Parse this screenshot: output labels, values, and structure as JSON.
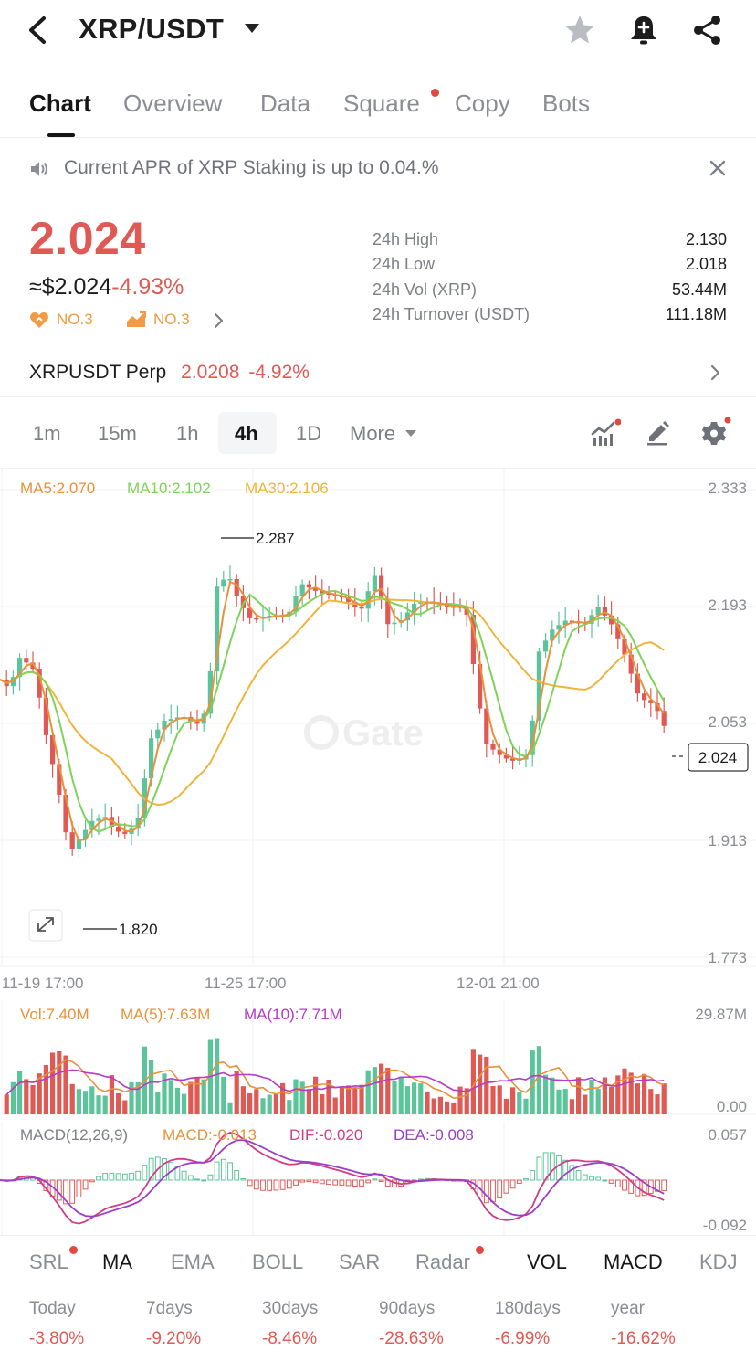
{
  "header": {
    "title": "XRP/USDT"
  },
  "tabs": [
    "Chart",
    "Overview",
    "Data",
    "Square",
    "Copy",
    "Bots"
  ],
  "notice": {
    "text": "Current APR of XRP Staking is up to 0.04.%"
  },
  "price": {
    "last": "2.024",
    "usd": "≈$2.024",
    "change": "-4.93%",
    "rank1": "NO.3",
    "rank2": "NO.3"
  },
  "stats": [
    {
      "label": "24h High",
      "value": "2.130"
    },
    {
      "label": "24h Low",
      "value": "2.018"
    },
    {
      "label": "24h Vol (XRP)",
      "value": "53.44M"
    },
    {
      "label": "24h Turnover (USDT)",
      "value": "111.18M"
    }
  ],
  "perp": {
    "name": "XRPUSDT Perp",
    "price": "2.0208",
    "change": "-4.92%"
  },
  "timeframes": [
    "1m",
    "15m",
    "1h",
    "4h",
    "1D",
    "More"
  ],
  "colors": {
    "up": "#5bc49a",
    "down": "#e05a55",
    "ma5": "#e8913a",
    "ma10": "#7fd35a",
    "ma30": "#f0b43c",
    "vol_ma10": "#b43cc8",
    "dif": "#cf3d86",
    "dea": "#9c3ec6"
  },
  "chart": {
    "ma_legend": {
      "ma5": "MA5:2.070",
      "ma10": "MA10:2.102",
      "ma30": "MA30:2.106"
    },
    "y_ticks": [
      "2.333",
      "2.193",
      "2.053",
      "1.913",
      "1.773"
    ],
    "x_ticks": [
      "11-19 17:00",
      "11-25 17:00",
      "12-01 21:00"
    ],
    "high_label": "2.287",
    "low_label": "1.820",
    "current": "2.024",
    "watermark": "Gate"
  },
  "volume": {
    "vol": "Vol:7.40M",
    "ma5": "MA(5):7.63M",
    "ma10": "MA(10):7.71M",
    "top": "29.87M",
    "bottom": "0.00"
  },
  "macd": {
    "title": "MACD(12,26,9)",
    "macd": "MACD:-0.013",
    "dif": "DIF:-0.020",
    "dea": "DEA:-0.008",
    "top": "0.057",
    "bottom": "-0.092"
  },
  "indicators": [
    "SRL",
    "MA",
    "EMA",
    "BOLL",
    "SAR",
    "Radar",
    "VOL",
    "MACD",
    "KDJ"
  ],
  "performance": [
    {
      "label": "Today",
      "value": "-3.80%"
    },
    {
      "label": "7days",
      "value": "-9.20%"
    },
    {
      "label": "30days",
      "value": "-8.46%"
    },
    {
      "label": "90days",
      "value": "-28.63%"
    },
    {
      "label": "180days",
      "value": "-6.99%"
    },
    {
      "label": "year",
      "value": "-16.62%"
    }
  ]
}
